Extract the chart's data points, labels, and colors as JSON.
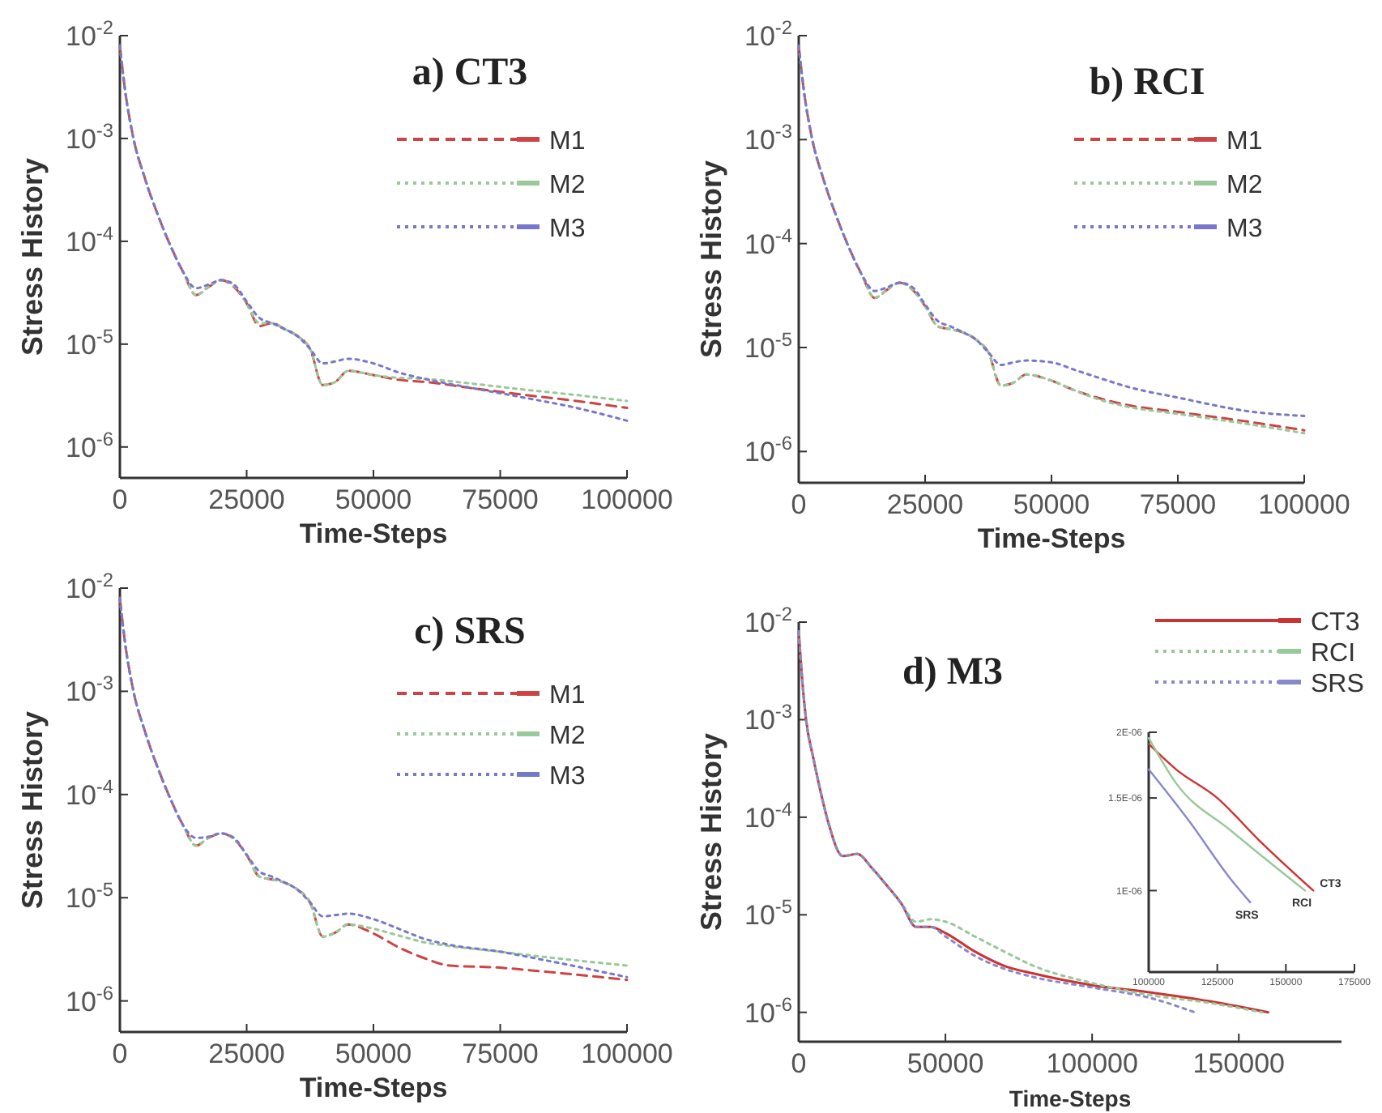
{
  "chart_data": [
    {
      "type": "line",
      "title": "a) CT3",
      "xlabel": "Time-Steps",
      "ylabel": "Stress History",
      "log": "y",
      "grid": false,
      "legend": "top right",
      "marker": "none",
      "x": [
        0,
        1000,
        2500,
        5000,
        7500,
        10000,
        12500,
        15000,
        17500,
        20000,
        22500,
        25000,
        27500,
        30000,
        32500,
        35000,
        37500,
        40000,
        42500,
        45000,
        50000,
        55000,
        60000,
        70000,
        80000,
        90000,
        100000
      ],
      "xlim": [
        0,
        100000
      ],
      "xticks": [
        0,
        25000,
        50000,
        75000,
        100000
      ],
      "ylim": [
        5e-07,
        0.01
      ],
      "yticks": [
        {
          "value": 0.01,
          "label": "10$^{-2}$"
        },
        {
          "value": 0.001,
          "label": "10$^{-3}$"
        },
        {
          "value": 0.0001,
          "label": "10$^{-4}$"
        },
        {
          "value": 1e-05,
          "label": "10$^{-5}$"
        },
        {
          "value": 1e-06,
          "label": "10$^{-6}$"
        }
      ],
      "series": [
        {
          "name": "M1",
          "color": "#cc4444",
          "line_style": "dashed",
          "values": [
            0.008,
            0.003,
            0.0011,
            0.0004,
            0.00018,
            9e-05,
            5e-05,
            3e-05,
            3.6e-05,
            4.2e-05,
            3.6e-05,
            2.5e-05,
            1.5e-05,
            1.6e-05,
            1.4e-05,
            1.2e-05,
            9e-06,
            4e-06,
            4.3e-06,
            5.5e-06,
            5e-06,
            4.5e-06,
            4.3e-06,
            3.7e-06,
            3.2e-06,
            2.8e-06,
            2.4e-06
          ]
        },
        {
          "name": "M2",
          "color": "#99c899",
          "line_style": "dotted",
          "values": [
            0.008,
            0.003,
            0.0011,
            0.0004,
            0.00018,
            9e-05,
            5e-05,
            3e-05,
            3.6e-05,
            4.2e-05,
            3.7e-05,
            2.5e-05,
            1.6e-05,
            1.6e-05,
            1.4e-05,
            1.2e-05,
            9e-06,
            4e-06,
            4.3e-06,
            5.5e-06,
            5e-06,
            4.7e-06,
            4.6e-06,
            4.1e-06,
            3.6e-06,
            3.2e-06,
            2.8e-06
          ]
        },
        {
          "name": "M3",
          "color": "#7777cc",
          "line_style": "dotted",
          "values": [
            0.008,
            0.003,
            0.0011,
            0.0004,
            0.00018,
            9e-05,
            5e-05,
            3.5e-05,
            3.8e-05,
            4.2e-05,
            3.8e-05,
            2.6e-05,
            1.8e-05,
            1.6e-05,
            1.4e-05,
            1.2e-05,
            9e-06,
            6.5e-06,
            6.8e-06,
            7.2e-06,
            6.5e-06,
            5.3e-06,
            4.6e-06,
            3.7e-06,
            3e-06,
            2.4e-06,
            1.8e-06
          ]
        }
      ]
    },
    {
      "type": "line",
      "title": "b) RCI",
      "xlabel": "Time-Steps",
      "ylabel": "Stress History",
      "log": "y",
      "grid": false,
      "legend": "top right",
      "marker": "none",
      "x": [
        0,
        1000,
        2500,
        5000,
        7500,
        10000,
        12500,
        15000,
        17500,
        20000,
        22500,
        25000,
        27500,
        30000,
        32500,
        35000,
        37500,
        40000,
        42500,
        45000,
        50000,
        55000,
        60000,
        65000,
        75000,
        90000,
        100000
      ],
      "xlim": [
        0,
        100000
      ],
      "xticks": [
        0,
        25000,
        50000,
        75000,
        100000
      ],
      "ylim": [
        5e-07,
        0.01
      ],
      "yticks": [
        {
          "value": 0.01,
          "label": "10$^{-2}$"
        },
        {
          "value": 0.001,
          "label": "10$^{-3}$"
        },
        {
          "value": 0.0001,
          "label": "10$^{-4}$"
        },
        {
          "value": 1e-05,
          "label": "10$^{-5}$"
        },
        {
          "value": 1e-06,
          "label": "10$^{-6}$"
        }
      ],
      "series": [
        {
          "name": "M1",
          "color": "#cc4444",
          "line_style": "dashed",
          "values": [
            0.008,
            0.003,
            0.0011,
            0.0004,
            0.00018,
            9e-05,
            5e-05,
            3e-05,
            3.6e-05,
            4.2e-05,
            3.6e-05,
            2.5e-05,
            1.6e-05,
            1.5e-05,
            1.4e-05,
            1.2e-05,
            9e-06,
            4.3e-06,
            4.6e-06,
            5.5e-06,
            4.8e-06,
            3.8e-06,
            3.2e-06,
            2.8e-06,
            2.4e-06,
            1.9e-06,
            1.6e-06
          ]
        },
        {
          "name": "M2",
          "color": "#99c899",
          "line_style": "dotted",
          "values": [
            0.008,
            0.003,
            0.0011,
            0.0004,
            0.00018,
            9e-05,
            5e-05,
            3e-05,
            3.6e-05,
            4.2e-05,
            3.6e-05,
            2.5e-05,
            1.6e-05,
            1.5e-05,
            1.4e-05,
            1.2e-05,
            9e-06,
            4.3e-06,
            4.6e-06,
            5.5e-06,
            4.8e-06,
            3.8e-06,
            3.1e-06,
            2.7e-06,
            2.3e-06,
            1.8e-06,
            1.5e-06
          ]
        },
        {
          "name": "M3",
          "color": "#7777cc",
          "line_style": "dotted",
          "values": [
            0.008,
            0.003,
            0.0011,
            0.0004,
            0.00018,
            9e-05,
            5e-05,
            3.5e-05,
            3.8e-05,
            4.2e-05,
            3.8e-05,
            2.6e-05,
            1.8e-05,
            1.6e-05,
            1.4e-05,
            1.2e-05,
            9e-06,
            6.8e-06,
            7.2e-06,
            7.5e-06,
            7.2e-06,
            6e-06,
            5e-06,
            4.2e-06,
            3.3e-06,
            2.4e-06,
            2.2e-06
          ]
        }
      ]
    },
    {
      "type": "line",
      "title": "c) SRS",
      "xlabel": "Time-Steps",
      "ylabel": "Stress History",
      "log": "y",
      "grid": false,
      "legend": "top right",
      "marker": "none",
      "x": [
        0,
        1000,
        2500,
        5000,
        7500,
        10000,
        12500,
        15000,
        17500,
        20000,
        22500,
        25000,
        27500,
        30000,
        32500,
        35000,
        37500,
        40000,
        42500,
        45000,
        50000,
        55000,
        60000,
        65000,
        75000,
        80000,
        100000
      ],
      "xlim": [
        0,
        100000
      ],
      "xticks": [
        0,
        25000,
        50000,
        75000,
        100000
      ],
      "ylim": [
        5e-07,
        0.01
      ],
      "yticks": [
        {
          "value": 0.01,
          "label": "10$^{-2}$"
        },
        {
          "value": 0.001,
          "label": "10$^{-3}$"
        },
        {
          "value": 0.0001,
          "label": "10$^{-4}$"
        },
        {
          "value": 1e-05,
          "label": "10$^{-5}$"
        },
        {
          "value": 1e-06,
          "label": "10$^{-6}$"
        }
      ],
      "series": [
        {
          "name": "M1",
          "color": "#cc4444",
          "line_style": "dashed",
          "values": [
            0.008,
            0.003,
            0.0011,
            0.0004,
            0.00018,
            9e-05,
            5e-05,
            3.2e-05,
            3.8e-05,
            4.2e-05,
            3.7e-05,
            2.6e-05,
            1.6e-05,
            1.5e-05,
            1.4e-05,
            1.2e-05,
            9e-06,
            4.2e-06,
            4.6e-06,
            5.5e-06,
            4.5e-06,
            3.3e-06,
            2.6e-06,
            2.2e-06,
            2.1e-06,
            2e-06,
            1.6e-06
          ]
        },
        {
          "name": "M2",
          "color": "#99c899",
          "line_style": "dotted",
          "values": [
            0.008,
            0.003,
            0.0011,
            0.0004,
            0.00018,
            9e-05,
            5e-05,
            3.2e-05,
            3.8e-05,
            4.2e-05,
            3.7e-05,
            2.6e-05,
            1.6e-05,
            1.5e-05,
            1.4e-05,
            1.2e-05,
            9e-06,
            4.2e-06,
            4.6e-06,
            5.5e-06,
            5e-06,
            4.3e-06,
            3.7e-06,
            3.4e-06,
            3e-06,
            2.8e-06,
            2.2e-06
          ]
        },
        {
          "name": "M3",
          "color": "#7777cc",
          "line_style": "dotted",
          "values": [
            0.008,
            0.003,
            0.0011,
            0.0004,
            0.00018,
            9e-05,
            5e-05,
            3.8e-05,
            3.9e-05,
            4.2e-05,
            3.8e-05,
            2.6e-05,
            1.8e-05,
            1.6e-05,
            1.4e-05,
            1.2e-05,
            9e-06,
            6.6e-06,
            6.8e-06,
            7e-06,
            6.2e-06,
            5e-06,
            4e-06,
            3.5e-06,
            3e-06,
            2.7e-06,
            1.7e-06
          ]
        }
      ]
    },
    {
      "type": "line",
      "title": "d) M3",
      "xlabel": "Time-Steps",
      "ylabel": "Stress History",
      "log": "y",
      "grid": false,
      "legend": "top right",
      "marker": "none",
      "xlim": [
        0,
        185000
      ],
      "xticks": [
        0,
        50000,
        100000,
        150000
      ],
      "ylim": [
        5e-07,
        0.01
      ],
      "yticks": [
        {
          "value": 0.01,
          "label": "10$^{-2}$"
        },
        {
          "value": 0.001,
          "label": "10$^{-3}$"
        },
        {
          "value": 0.0001,
          "label": "10$^{-4}$"
        },
        {
          "value": 1e-05,
          "label": "10$^{-5}$"
        },
        {
          "value": 1e-06,
          "label": "10$^{-6}$"
        }
      ],
      "series": [
        {
          "name": "CT3",
          "color": "#cc3333",
          "line_style": "solid",
          "x": [
            0,
            1000,
            2500,
            5000,
            7500,
            10000,
            15000,
            20000,
            25000,
            30000,
            35000,
            40000,
            45000,
            50000,
            60000,
            70000,
            80000,
            100000,
            120000,
            140000,
            160000
          ],
          "values": [
            0.008,
            0.003,
            0.001,
            0.0004,
            0.00018,
            9e-05,
            4e-05,
            4.2e-05,
            3e-05,
            2e-05,
            1.3e-05,
            7.5e-06,
            7.5e-06,
            6.5e-06,
            4.2e-06,
            3e-06,
            2.5e-06,
            1.9e-06,
            1.6e-06,
            1.3e-06,
            1e-06
          ]
        },
        {
          "name": "RCI",
          "color": "#99c899",
          "line_style": "dotted",
          "x": [
            0,
            1000,
            2500,
            5000,
            7500,
            10000,
            15000,
            20000,
            25000,
            30000,
            35000,
            40000,
            45000,
            50000,
            60000,
            70000,
            80000,
            100000,
            120000,
            140000,
            158000
          ],
          "values": [
            0.008,
            0.003,
            0.001,
            0.0004,
            0.00018,
            9e-05,
            4e-05,
            4.2e-05,
            3e-05,
            2e-05,
            1.3e-05,
            8.5e-06,
            9e-06,
            8.5e-06,
            6e-06,
            4.2e-06,
            3e-06,
            2e-06,
            1.5e-06,
            1.25e-06,
            1e-06
          ]
        },
        {
          "name": "SRS",
          "color": "#8888cc",
          "line_style": "dotted",
          "x": [
            0,
            1000,
            2500,
            5000,
            7500,
            10000,
            15000,
            20000,
            25000,
            30000,
            35000,
            40000,
            45000,
            50000,
            60000,
            70000,
            80000,
            100000,
            120000,
            135000
          ],
          "values": [
            0.008,
            0.003,
            0.001,
            0.0004,
            0.00018,
            9e-05,
            4e-05,
            4.2e-05,
            3e-05,
            2e-05,
            1.3e-05,
            7.5e-06,
            7.5e-06,
            6e-06,
            3.8e-06,
            2.8e-06,
            2.3e-06,
            1.8e-06,
            1.4e-06,
            1e-06
          ]
        }
      ]
    },
    {
      "type": "line",
      "log": "y",
      "grid": false,
      "legend": false,
      "marker": "none",
      "xlim": [
        100000,
        175000
      ],
      "xticks": [
        100000,
        125000,
        150000,
        175000
      ],
      "ylim": [
        7e-07,
        2e-06
      ],
      "yticks": [
        {
          "value": 2e-06,
          "label": "2E-06"
        },
        {
          "value": 1.5e-06,
          "label": "1.5E-06"
        },
        {
          "value": 1e-06,
          "label": "1E-06"
        }
      ],
      "series": [
        {
          "name": "CT3",
          "color": "#cc3333",
          "line_style": "solid",
          "x": [
            100000,
            110000,
            125000,
            140000,
            160000
          ],
          "values": [
            1.9e-06,
            1.7e-06,
            1.5e-06,
            1.25e-06,
            1e-06
          ]
        },
        {
          "name": "RCI",
          "color": "#99c899",
          "line_style": "solid",
          "x": [
            100000,
            110000,
            130000,
            157000
          ],
          "values": [
            1.95e-06,
            1.6e-06,
            1.3e-06,
            1e-06
          ]
        },
        {
          "name": "SRS",
          "color": "#8888cc",
          "line_style": "solid",
          "x": [
            100000,
            115000,
            130000,
            137000
          ],
          "values": [
            1.7e-06,
            1.35e-06,
            1.05e-06,
            9.5e-07
          ]
        }
      ]
    }
  ]
}
